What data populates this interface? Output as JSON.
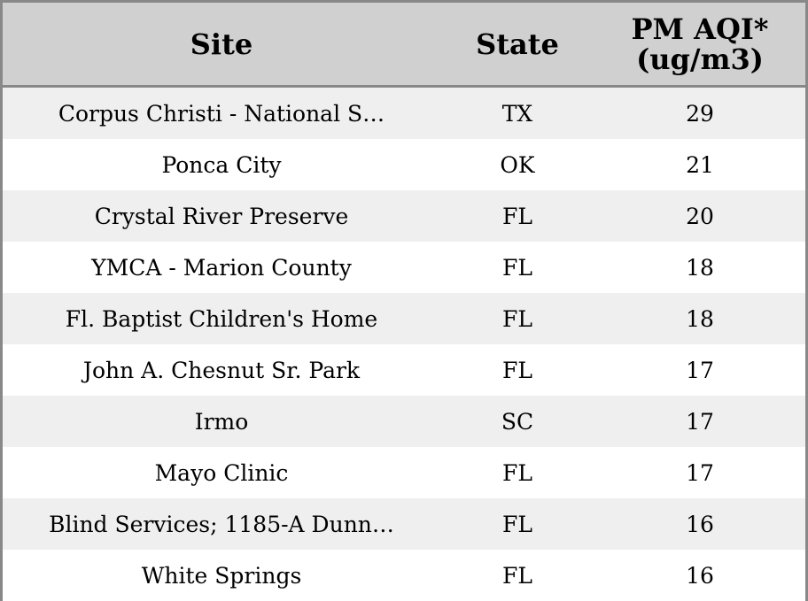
{
  "chart_data": {
    "type": "table",
    "columns": [
      "Site",
      "State",
      "PM AQI*\n(ug/m3)"
    ],
    "header_lines": {
      "site": "Site",
      "state": "State",
      "pm_line1": "PM AQI*",
      "pm_line2": "(ug/m3)"
    },
    "rows": [
      {
        "site": "Corpus Christi - National S…",
        "state": "TX",
        "pm": 29
      },
      {
        "site": "Ponca City",
        "state": "OK",
        "pm": 21
      },
      {
        "site": "Crystal River Preserve",
        "state": "FL",
        "pm": 20
      },
      {
        "site": "YMCA - Marion County",
        "state": "FL",
        "pm": 18
      },
      {
        "site": "Fl. Baptist Children's Home",
        "state": "FL",
        "pm": 18
      },
      {
        "site": "John A. Chesnut Sr. Park",
        "state": "FL",
        "pm": 17
      },
      {
        "site": "Irmo",
        "state": "SC",
        "pm": 17
      },
      {
        "site": "Mayo Clinic",
        "state": "FL",
        "pm": 17
      },
      {
        "site": "Blind Services; 1185-A Dunn…",
        "state": "FL",
        "pm": 16
      },
      {
        "site": "White Springs",
        "state": "FL",
        "pm": 16
      }
    ]
  },
  "colors": {
    "header_bg": "#d0d0d0",
    "row_odd_bg": "#efefef",
    "row_even_bg": "#ffffff",
    "border": "#888888"
  }
}
